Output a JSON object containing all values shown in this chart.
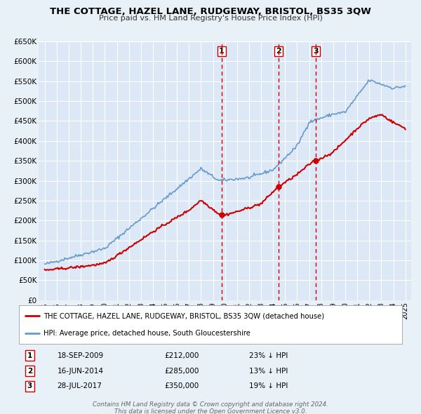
{
  "title": "THE COTTAGE, HAZEL LANE, RUDGEWAY, BRISTOL, BS35 3QW",
  "subtitle": "Price paid vs. HM Land Registry's House Price Index (HPI)",
  "red_label": "THE COTTAGE, HAZEL LANE, RUDGEWAY, BRISTOL, BS35 3QW (detached house)",
  "blue_label": "HPI: Average price, detached house, South Gloucestershire",
  "transactions": [
    {
      "num": 1,
      "date": "18-SEP-2009",
      "price": 212000,
      "hpi_diff": "23% ↓ HPI",
      "x": 2009.72
    },
    {
      "num": 2,
      "date": "16-JUN-2014",
      "price": 285000,
      "hpi_diff": "13% ↓ HPI",
      "x": 2014.46
    },
    {
      "num": 3,
      "date": "28-JUL-2017",
      "price": 350000,
      "hpi_diff": "19% ↓ HPI",
      "x": 2017.57
    }
  ],
  "footer1": "Contains HM Land Registry data © Crown copyright and database right 2024.",
  "footer2": "This data is licensed under the Open Government Licence v3.0.",
  "ylim": [
    0,
    650000
  ],
  "yticks": [
    0,
    50000,
    100000,
    150000,
    200000,
    250000,
    300000,
    350000,
    400000,
    450000,
    500000,
    550000,
    600000,
    650000
  ],
  "xlim_start": 1994.5,
  "xlim_end": 2025.5,
  "bg_color": "#e8f0f8",
  "plot_bg": "#dce8f5",
  "grid_color": "#ffffff",
  "red_color": "#cc0000",
  "blue_color": "#6699cc"
}
